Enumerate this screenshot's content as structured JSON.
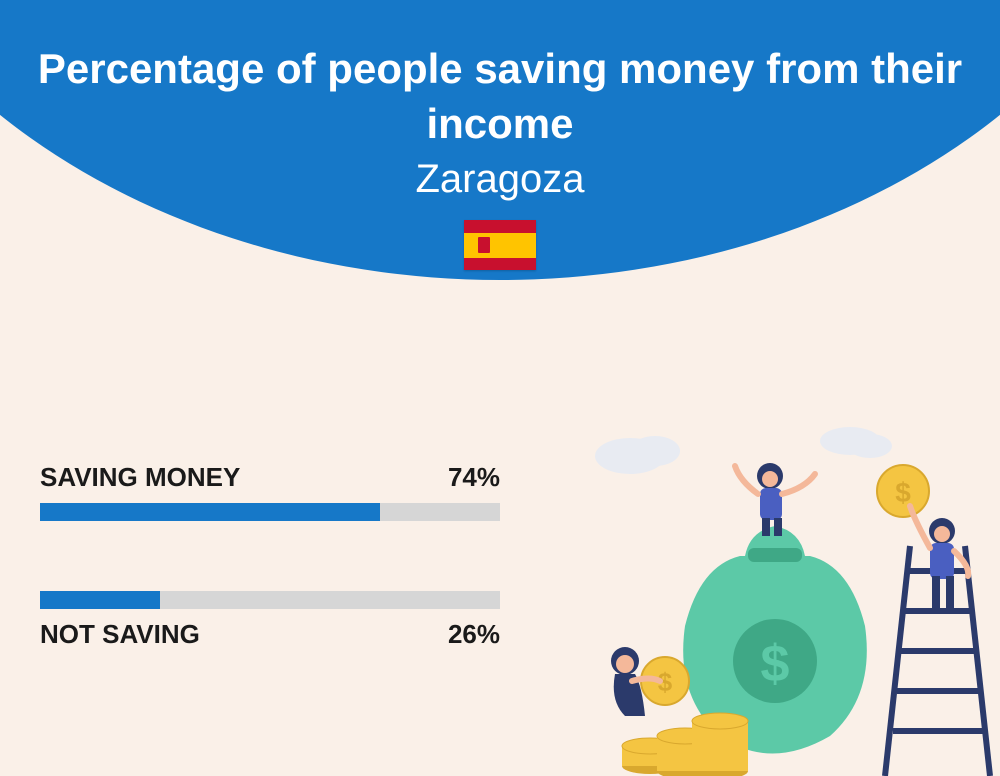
{
  "header": {
    "arc_color": "#1678c8",
    "title": "Percentage of people saving money from their income",
    "subtitle": "Zaragoza",
    "title_color": "#ffffff",
    "title_fontsize": 42,
    "subtitle_fontsize": 40
  },
  "flag": {
    "red": "#c8102e",
    "yellow": "#ffc400"
  },
  "background_color": "#faf0e8",
  "bars": {
    "track_color": "#d6d6d6",
    "fill_color": "#1678c8",
    "label_color": "#1a1a1a",
    "label_fontsize": 26,
    "track_height": 18,
    "items": [
      {
        "label": "SAVING MONEY",
        "value": 74,
        "value_text": "74%",
        "labels_position": "above"
      },
      {
        "label": "NOT SAVING",
        "value": 26,
        "value_text": "26%",
        "labels_position": "below"
      }
    ]
  },
  "illustration": {
    "bag_color": "#5cc9a7",
    "bag_dark": "#3fa886",
    "coin_color": "#f4c542",
    "coin_dark": "#d9a82e",
    "person_blue": "#2b3a6b",
    "person_skin": "#f4b89a",
    "ladder_color": "#2b3a6b",
    "cloud_color": "#e8ebf2"
  }
}
